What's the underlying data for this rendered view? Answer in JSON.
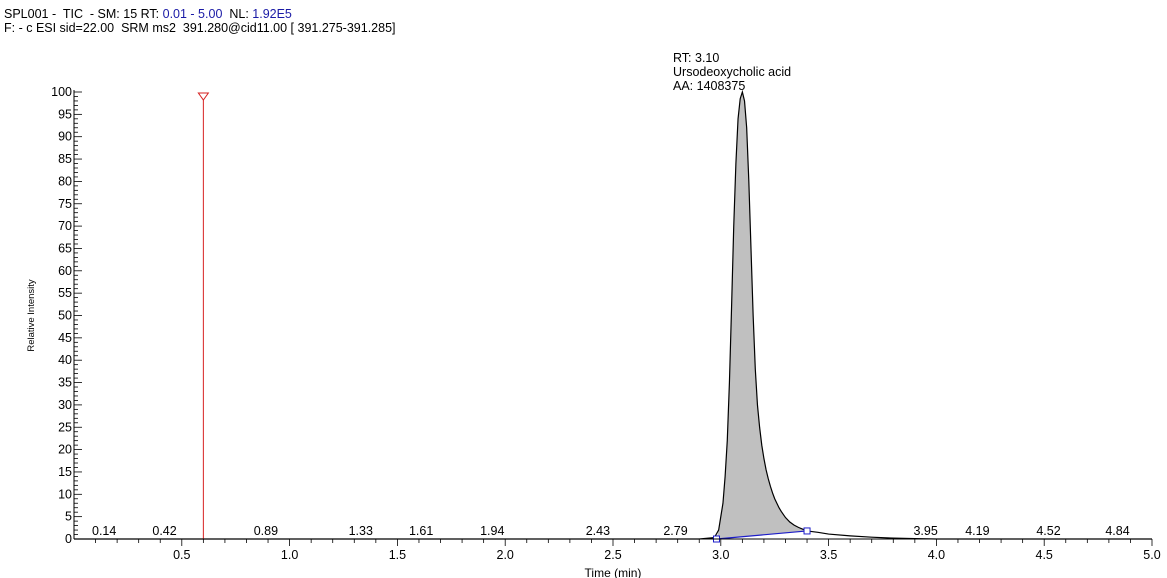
{
  "header": {
    "line1_a": "SPL001 -  TIC  - SM: 15 RT: ",
    "line1_rt": "0.01 - 5.00",
    "line1_b": "  NL: ",
    "line1_nl": "1.92E5",
    "line2": "F: - c ESI sid=22.00  SRM ms2  391.280@cid11.00 [ 391.275-391.285]"
  },
  "peak_annotation": {
    "rt": "RT: 3.10",
    "name": "Ursodeoxycholic acid",
    "area": "AA: 1408375"
  },
  "colors": {
    "trace": "#000000",
    "fill": "#c0c0c0",
    "baseline": "#1c1cc8",
    "marker": "#d62020"
  },
  "chart_data": {
    "type": "line",
    "xlabel": "Time (min)",
    "ylabel": "Relative Intensity",
    "xlim": [
      0.0,
      5.0
    ],
    "ylim": [
      0,
      100
    ],
    "x_ticks": [
      "0.5",
      "1.0",
      "1.5",
      "2.0",
      "2.5",
      "3.0",
      "3.5",
      "4.0",
      "4.5",
      "5.0"
    ],
    "y_ticks": [
      "0",
      "5",
      "10",
      "15",
      "20",
      "25",
      "30",
      "35",
      "40",
      "45",
      "50",
      "55",
      "60",
      "65",
      "70",
      "75",
      "80",
      "85",
      "90",
      "95",
      "100"
    ],
    "marker_rt": 0.6,
    "minor_peak_labels": [
      {
        "x": 0.14,
        "label": "0.14"
      },
      {
        "x": 0.42,
        "label": "0.42"
      },
      {
        "x": 0.89,
        "label": "0.89"
      },
      {
        "x": 1.33,
        "label": "1.33"
      },
      {
        "x": 1.61,
        "label": "1.61"
      },
      {
        "x": 1.94,
        "label": "1.94"
      },
      {
        "x": 2.43,
        "label": "2.43"
      },
      {
        "x": 2.79,
        "label": "2.79"
      },
      {
        "x": 3.95,
        "label": "3.95"
      },
      {
        "x": 4.19,
        "label": "4.19"
      },
      {
        "x": 4.52,
        "label": "4.52"
      },
      {
        "x": 4.84,
        "label": "4.84"
      }
    ],
    "integration": {
      "start": [
        2.98,
        0
      ],
      "end": [
        3.4,
        1.8
      ]
    },
    "trace": [
      [
        0.0,
        0
      ],
      [
        2.9,
        0
      ],
      [
        2.97,
        0.3
      ],
      [
        2.99,
        2
      ],
      [
        3.0,
        5
      ],
      [
        3.01,
        8
      ],
      [
        3.02,
        14
      ],
      [
        3.03,
        22
      ],
      [
        3.04,
        35
      ],
      [
        3.05,
        52
      ],
      [
        3.06,
        70
      ],
      [
        3.07,
        84
      ],
      [
        3.08,
        94
      ],
      [
        3.09,
        98.5
      ],
      [
        3.1,
        100
      ],
      [
        3.11,
        98
      ],
      [
        3.12,
        92
      ],
      [
        3.13,
        80
      ],
      [
        3.14,
        65
      ],
      [
        3.15,
        50
      ],
      [
        3.16,
        38
      ],
      [
        3.17,
        30
      ],
      [
        3.18,
        25
      ],
      [
        3.19,
        21
      ],
      [
        3.2,
        18
      ],
      [
        3.21,
        15.5
      ],
      [
        3.22,
        13.5
      ],
      [
        3.23,
        11.8
      ],
      [
        3.24,
        10.3
      ],
      [
        3.25,
        9
      ],
      [
        3.26,
        8
      ],
      [
        3.27,
        7
      ],
      [
        3.28,
        6.2
      ],
      [
        3.29,
        5.5
      ],
      [
        3.3,
        4.8
      ],
      [
        3.32,
        3.8
      ],
      [
        3.34,
        3.1
      ],
      [
        3.36,
        2.6
      ],
      [
        3.38,
        2.2
      ],
      [
        3.4,
        1.8
      ],
      [
        3.45,
        1.5
      ],
      [
        3.5,
        1.1
      ],
      [
        3.6,
        0.7
      ],
      [
        3.7,
        0.4
      ],
      [
        3.8,
        0.2
      ],
      [
        3.9,
        0.1
      ],
      [
        4.0,
        0
      ],
      [
        5.0,
        0
      ]
    ]
  }
}
